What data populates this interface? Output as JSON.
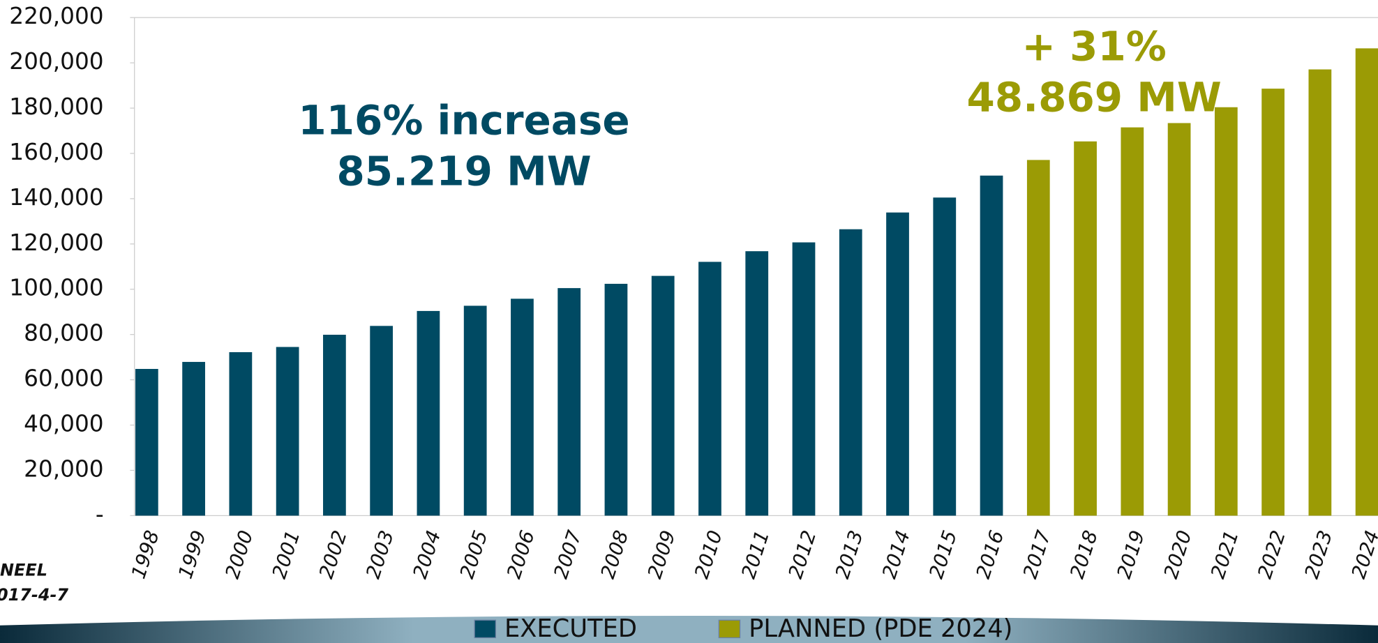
{
  "chart_data": {
    "type": "bar",
    "categories": [
      "1998",
      "1999",
      "2000",
      "2001",
      "2002",
      "2003",
      "2004",
      "2005",
      "2006",
      "2007",
      "2008",
      "2009",
      "2010",
      "2011",
      "2012",
      "2013",
      "2014",
      "2015",
      "2016",
      "2017",
      "2018",
      "2019",
      "2020",
      "2021",
      "2022",
      "2023",
      "2024"
    ],
    "series": [
      {
        "name": "EXECUTED",
        "color": "#004a63",
        "values": [
          64800,
          67900,
          72200,
          74500,
          79900,
          83800,
          90400,
          92700,
          95800,
          100500,
          102400,
          105900,
          112100,
          116800,
          120700,
          126500,
          133900,
          140500,
          150200,
          null,
          null,
          null,
          null,
          null,
          null,
          null,
          null
        ]
      },
      {
        "name": "PLANNED (PDE 2024)",
        "color": "#9b9b05",
        "values": [
          null,
          null,
          null,
          null,
          null,
          null,
          null,
          null,
          null,
          null,
          null,
          null,
          null,
          null,
          null,
          null,
          null,
          null,
          null,
          157100,
          165300,
          171500,
          173400,
          180400,
          188600,
          197100,
          206400
        ]
      }
    ],
    "ylim": [
      0,
      220000
    ],
    "yticks": [
      {
        "value": 0,
        "label": "-"
      },
      {
        "value": 20000,
        "label": "20,000"
      },
      {
        "value": 40000,
        "label": "40,000"
      },
      {
        "value": 60000,
        "label": "60,000"
      },
      {
        "value": 80000,
        "label": "80,000"
      },
      {
        "value": 100000,
        "label": "100,000"
      },
      {
        "value": 120000,
        "label": "120,000"
      },
      {
        "value": 140000,
        "label": "140,000"
      },
      {
        "value": 160000,
        "label": "160,000"
      },
      {
        "value": 180000,
        "label": "180,000"
      },
      {
        "value": 200000,
        "label": "200,000"
      },
      {
        "value": 220000,
        "label": "220,000"
      }
    ],
    "annotations": [
      "116% increase",
      "85.219 MW",
      "+ 31%",
      "48.869 MW"
    ],
    "notes": [
      "NEEL",
      "017-4-7"
    ],
    "legend": "bottom"
  }
}
